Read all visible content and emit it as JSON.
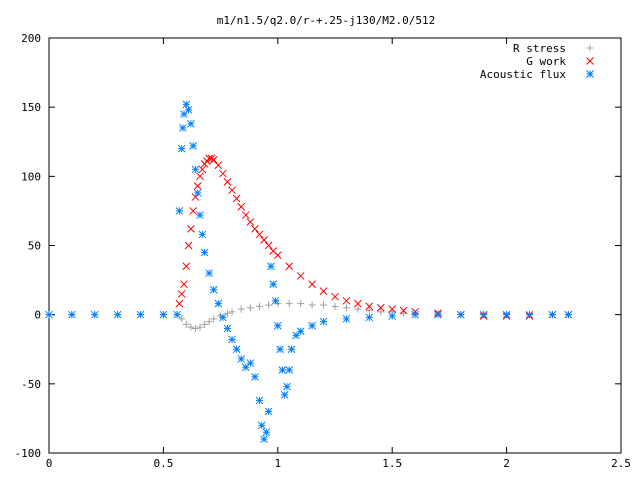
{
  "chart_data": {
    "type": "scatter",
    "title": "m1/n1.5/q2.0/r-+.25-j130/M2.0/512",
    "xlabel": "",
    "ylabel": "",
    "xlim": [
      0,
      2.5
    ],
    "ylim": [
      -100,
      200
    ],
    "x_ticks": [
      {
        "value": 0,
        "label": "0"
      },
      {
        "value": 0.5,
        "label": "0.5"
      },
      {
        "value": 1,
        "label": "1"
      },
      {
        "value": 1.5,
        "label": "1.5"
      },
      {
        "value": 2,
        "label": "2"
      },
      {
        "value": 2.5,
        "label": "2.5"
      }
    ],
    "y_ticks": [
      {
        "value": -100,
        "label": "-100"
      },
      {
        "value": -50,
        "label": "-50"
      },
      {
        "value": 0,
        "label": "0"
      },
      {
        "value": 50,
        "label": "50"
      },
      {
        "value": 100,
        "label": "100"
      },
      {
        "value": 150,
        "label": "150"
      },
      {
        "value": 200,
        "label": "200"
      }
    ],
    "grid": false,
    "legend_position": "top-right",
    "series": [
      {
        "name": "R stress",
        "marker": "plus",
        "color": "#a0a0a0",
        "x": [
          0,
          0.1,
          0.2,
          0.3,
          0.4,
          0.5,
          0.56,
          0.58,
          0.6,
          0.62,
          0.64,
          0.66,
          0.68,
          0.7,
          0.72,
          0.75,
          0.78,
          0.8,
          0.84,
          0.88,
          0.92,
          0.96,
          1.0,
          1.05,
          1.1,
          1.15,
          1.2,
          1.25,
          1.3,
          1.35,
          1.4,
          1.45,
          1.5,
          1.55,
          1.6,
          1.7,
          1.8,
          1.9,
          2.0,
          2.1,
          2.2,
          2.27
        ],
        "y": [
          0,
          0,
          0,
          0,
          0,
          0,
          0,
          -3,
          -7,
          -9,
          -10,
          -9,
          -7,
          -5,
          -3,
          -1,
          1,
          2,
          4,
          5,
          6,
          7,
          8,
          8,
          8,
          7,
          7,
          6,
          5,
          4,
          3,
          2,
          2,
          1,
          1,
          1,
          0,
          0,
          0,
          0,
          0,
          0
        ]
      },
      {
        "name": "G work",
        "marker": "cross",
        "color": "#ff0000",
        "x": [
          0.57,
          0.58,
          0.59,
          0.6,
          0.61,
          0.62,
          0.63,
          0.64,
          0.65,
          0.66,
          0.67,
          0.68,
          0.69,
          0.7,
          0.71,
          0.72,
          0.74,
          0.76,
          0.78,
          0.8,
          0.82,
          0.84,
          0.86,
          0.88,
          0.9,
          0.92,
          0.94,
          0.96,
          0.98,
          1.0,
          1.05,
          1.1,
          1.15,
          1.2,
          1.25,
          1.3,
          1.35,
          1.4,
          1.45,
          1.5,
          1.55,
          1.6,
          1.7,
          1.8,
          1.9,
          2.0,
          2.1,
          2.2,
          2.27
        ],
        "y": [
          8,
          15,
          22,
          35,
          50,
          62,
          75,
          85,
          93,
          100,
          105,
          109,
          111,
          113,
          113,
          112,
          108,
          102,
          96,
          90,
          84,
          78,
          72,
          67,
          62,
          58,
          54,
          50,
          46,
          43,
          35,
          28,
          22,
          17,
          13,
          10,
          8,
          6,
          5,
          4,
          3,
          2,
          1,
          0,
          -1,
          -1,
          -1,
          0,
          0
        ]
      },
      {
        "name": "Acoustic flux",
        "marker": "star",
        "color": "#0080ff",
        "x": [
          0,
          0.1,
          0.2,
          0.3,
          0.4,
          0.5,
          0.56,
          0.57,
          0.58,
          0.585,
          0.59,
          0.6,
          0.61,
          0.62,
          0.63,
          0.64,
          0.65,
          0.66,
          0.67,
          0.68,
          0.7,
          0.72,
          0.74,
          0.76,
          0.78,
          0.8,
          0.82,
          0.84,
          0.86,
          0.88,
          0.9,
          0.92,
          0.93,
          0.94,
          0.95,
          0.96,
          0.97,
          0.98,
          0.99,
          1.0,
          1.01,
          1.02,
          1.03,
          1.04,
          1.05,
          1.06,
          1.08,
          1.1,
          1.15,
          1.2,
          1.3,
          1.4,
          1.5,
          1.6,
          1.7,
          1.8,
          1.9,
          2.0,
          2.1,
          2.2,
          2.27
        ],
        "y": [
          0,
          0,
          0,
          0,
          0,
          0,
          0,
          75,
          120,
          135,
          145,
          152,
          148,
          138,
          122,
          105,
          88,
          72,
          58,
          45,
          30,
          18,
          8,
          -2,
          -10,
          -18,
          -25,
          -32,
          -38,
          -35,
          -45,
          -62,
          -80,
          -90,
          -85,
          -70,
          35,
          22,
          10,
          -8,
          -25,
          -40,
          -58,
          -52,
          -40,
          -25,
          -15,
          -12,
          -8,
          -5,
          -3,
          -2,
          -1,
          0,
          0,
          0,
          0,
          0,
          0,
          0,
          0
        ]
      }
    ]
  }
}
